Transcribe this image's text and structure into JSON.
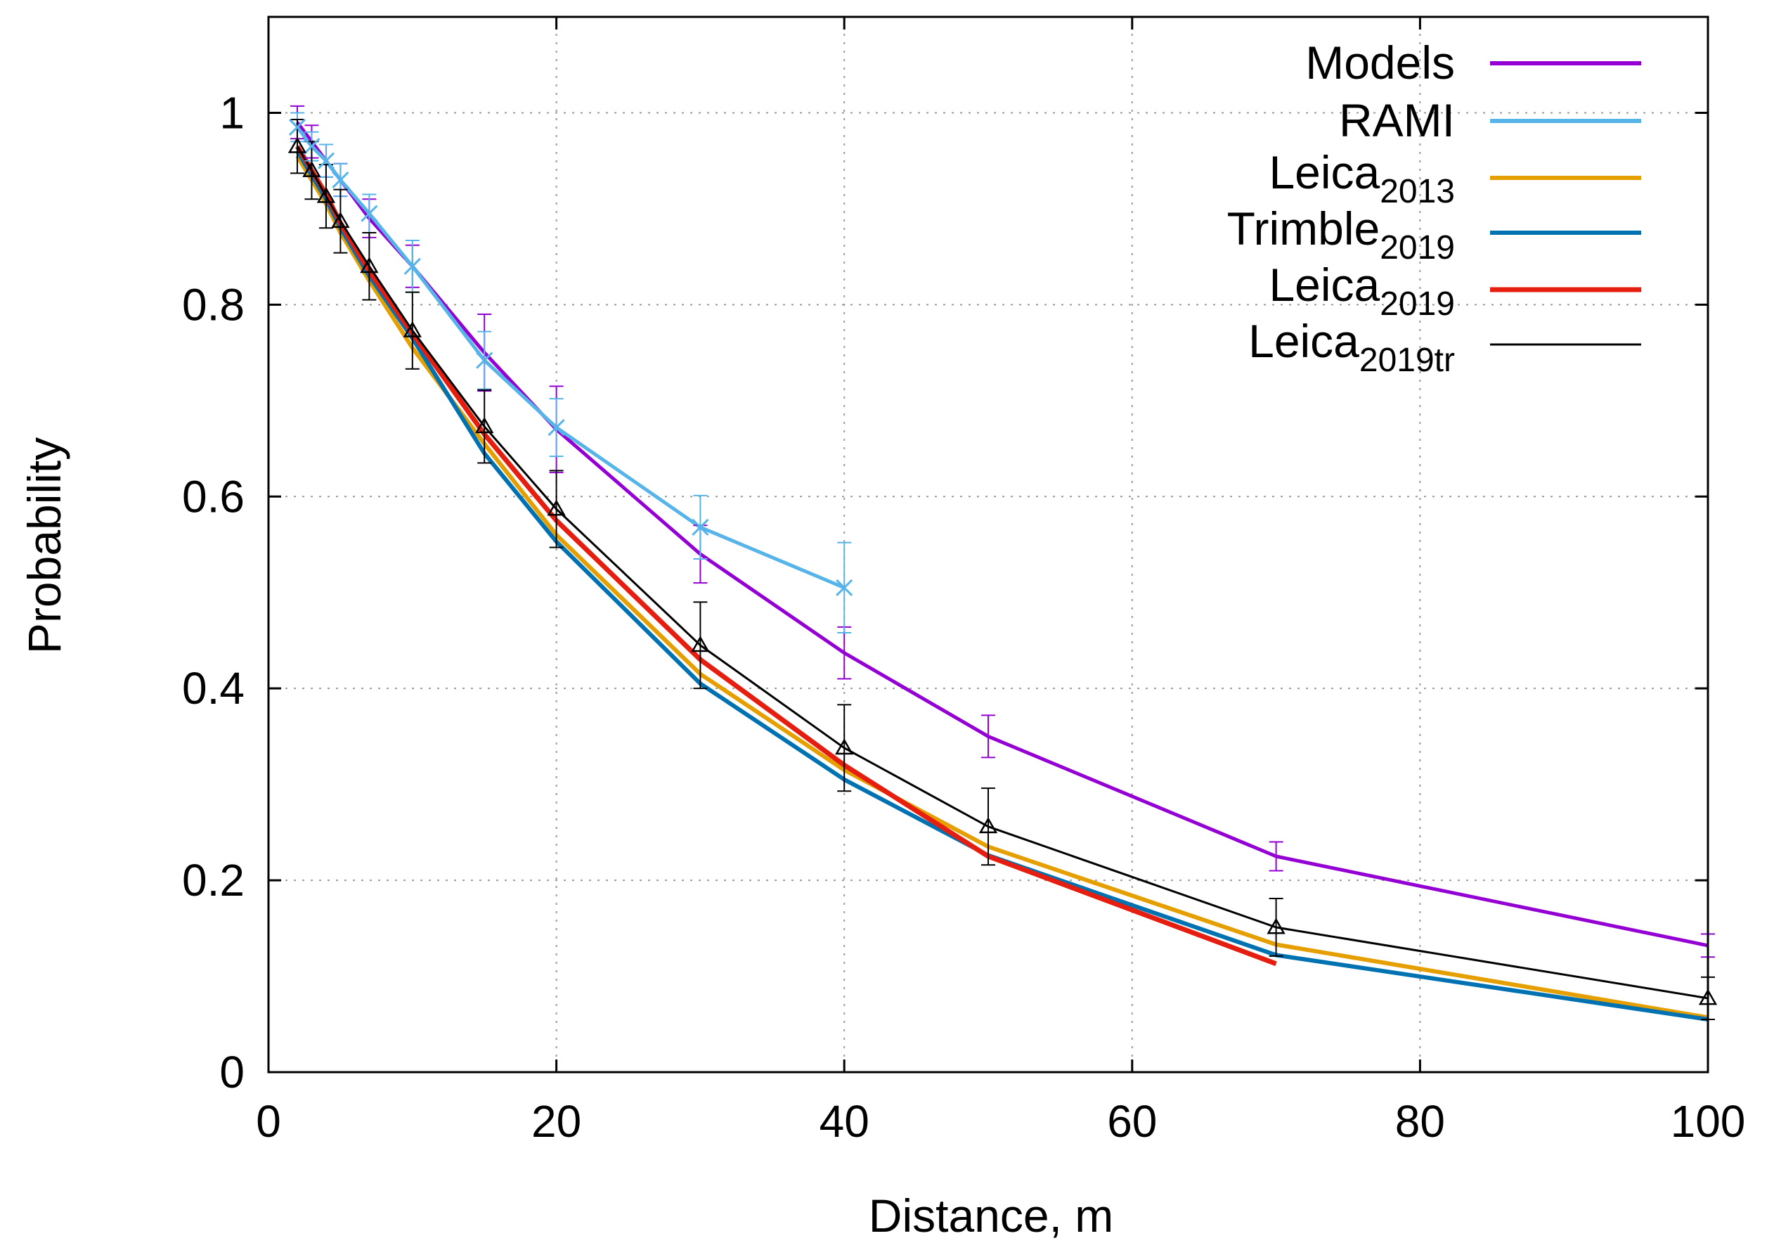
{
  "chart_data": {
    "type": "line",
    "xlabel": "Distance, m",
    "ylabel": "Probability",
    "xlim": [
      0,
      100
    ],
    "ylim": [
      0,
      1.1
    ],
    "xticks": [
      0,
      20,
      40,
      60,
      80,
      100
    ],
    "xtick_labels": [
      "0",
      "20",
      "40",
      "60",
      "80",
      "100"
    ],
    "yticks": [
      0,
      0.2,
      0.4,
      0.6,
      0.8,
      1
    ],
    "ytick_labels": [
      "0",
      "0.2",
      "0.4",
      "0.6",
      "0.8",
      "1"
    ],
    "grid": true,
    "legend_position": "top-right",
    "series": [
      {
        "name": "Models",
        "label_main": "Models",
        "label_sub": "",
        "color": "#9400d3",
        "marker": "none",
        "x": [
          2,
          3,
          4,
          5,
          7,
          10,
          15,
          20,
          30,
          40,
          50,
          70,
          100
        ],
        "y": [
          0.99,
          0.97,
          0.95,
          0.93,
          0.89,
          0.84,
          0.75,
          0.67,
          0.54,
          0.437,
          0.35,
          0.225,
          0.132
        ],
        "err": [
          0.017,
          0.017,
          0.017,
          0.017,
          0.02,
          0.022,
          0.04,
          0.045,
          0.03,
          0.027,
          0.022,
          0.015,
          0.012
        ]
      },
      {
        "name": "RAMI",
        "label_main": "RAMI",
        "label_sub": "",
        "color": "#56b4e9",
        "marker": "cross",
        "x": [
          2,
          3,
          4,
          5,
          7,
          10,
          15,
          20,
          30,
          40
        ],
        "y": [
          0.985,
          0.965,
          0.95,
          0.93,
          0.895,
          0.84,
          0.742,
          0.672,
          0.568,
          0.505
        ],
        "err": [
          0.015,
          0.015,
          0.017,
          0.017,
          0.02,
          0.027,
          0.03,
          0.03,
          0.033,
          0.047
        ]
      },
      {
        "name": "Leica2013",
        "label_main": "Leica",
        "label_sub": "2013",
        "color": "#e69f00",
        "marker": "none",
        "x": [
          2,
          3,
          4,
          5,
          7,
          10,
          15,
          20,
          30,
          40,
          50,
          70,
          100
        ],
        "y": [
          0.955,
          0.93,
          0.905,
          0.875,
          0.825,
          0.755,
          0.655,
          0.56,
          0.415,
          0.315,
          0.235,
          0.133,
          0.057
        ],
        "err": []
      },
      {
        "name": "Trimble2019",
        "label_main": "Trimble",
        "label_sub": "2019",
        "color": "#0072b2",
        "marker": "none",
        "x": [
          2,
          3,
          4,
          5,
          7,
          10,
          15,
          20,
          30,
          40,
          50,
          70,
          100
        ],
        "y": [
          0.96,
          0.935,
          0.91,
          0.88,
          0.83,
          0.765,
          0.645,
          0.553,
          0.405,
          0.305,
          0.226,
          0.122,
          0.055
        ],
        "err": []
      },
      {
        "name": "Leica2019",
        "label_main": "Leica",
        "label_sub": "2019",
        "color": "#e51e10",
        "marker": "none",
        "x": [
          2,
          3,
          4,
          5,
          7,
          10,
          15,
          20,
          30,
          40,
          50,
          70
        ],
        "y": [
          0.965,
          0.94,
          0.915,
          0.885,
          0.835,
          0.77,
          0.665,
          0.575,
          0.43,
          0.32,
          0.225,
          0.113
        ],
        "err": []
      },
      {
        "name": "Leica2019tr",
        "label_main": "Leica",
        "label_sub": "2019tr",
        "color": "#000000",
        "marker": "triangle",
        "x": [
          2,
          3,
          4,
          5,
          7,
          10,
          15,
          20,
          30,
          40,
          50,
          70,
          100
        ],
        "y": [
          0.965,
          0.94,
          0.913,
          0.887,
          0.84,
          0.773,
          0.673,
          0.587,
          0.445,
          0.338,
          0.256,
          0.151,
          0.077
        ],
        "err": [
          0.028,
          0.03,
          0.033,
          0.033,
          0.035,
          0.04,
          0.038,
          0.04,
          0.045,
          0.045,
          0.04,
          0.03,
          0.022
        ]
      }
    ]
  }
}
